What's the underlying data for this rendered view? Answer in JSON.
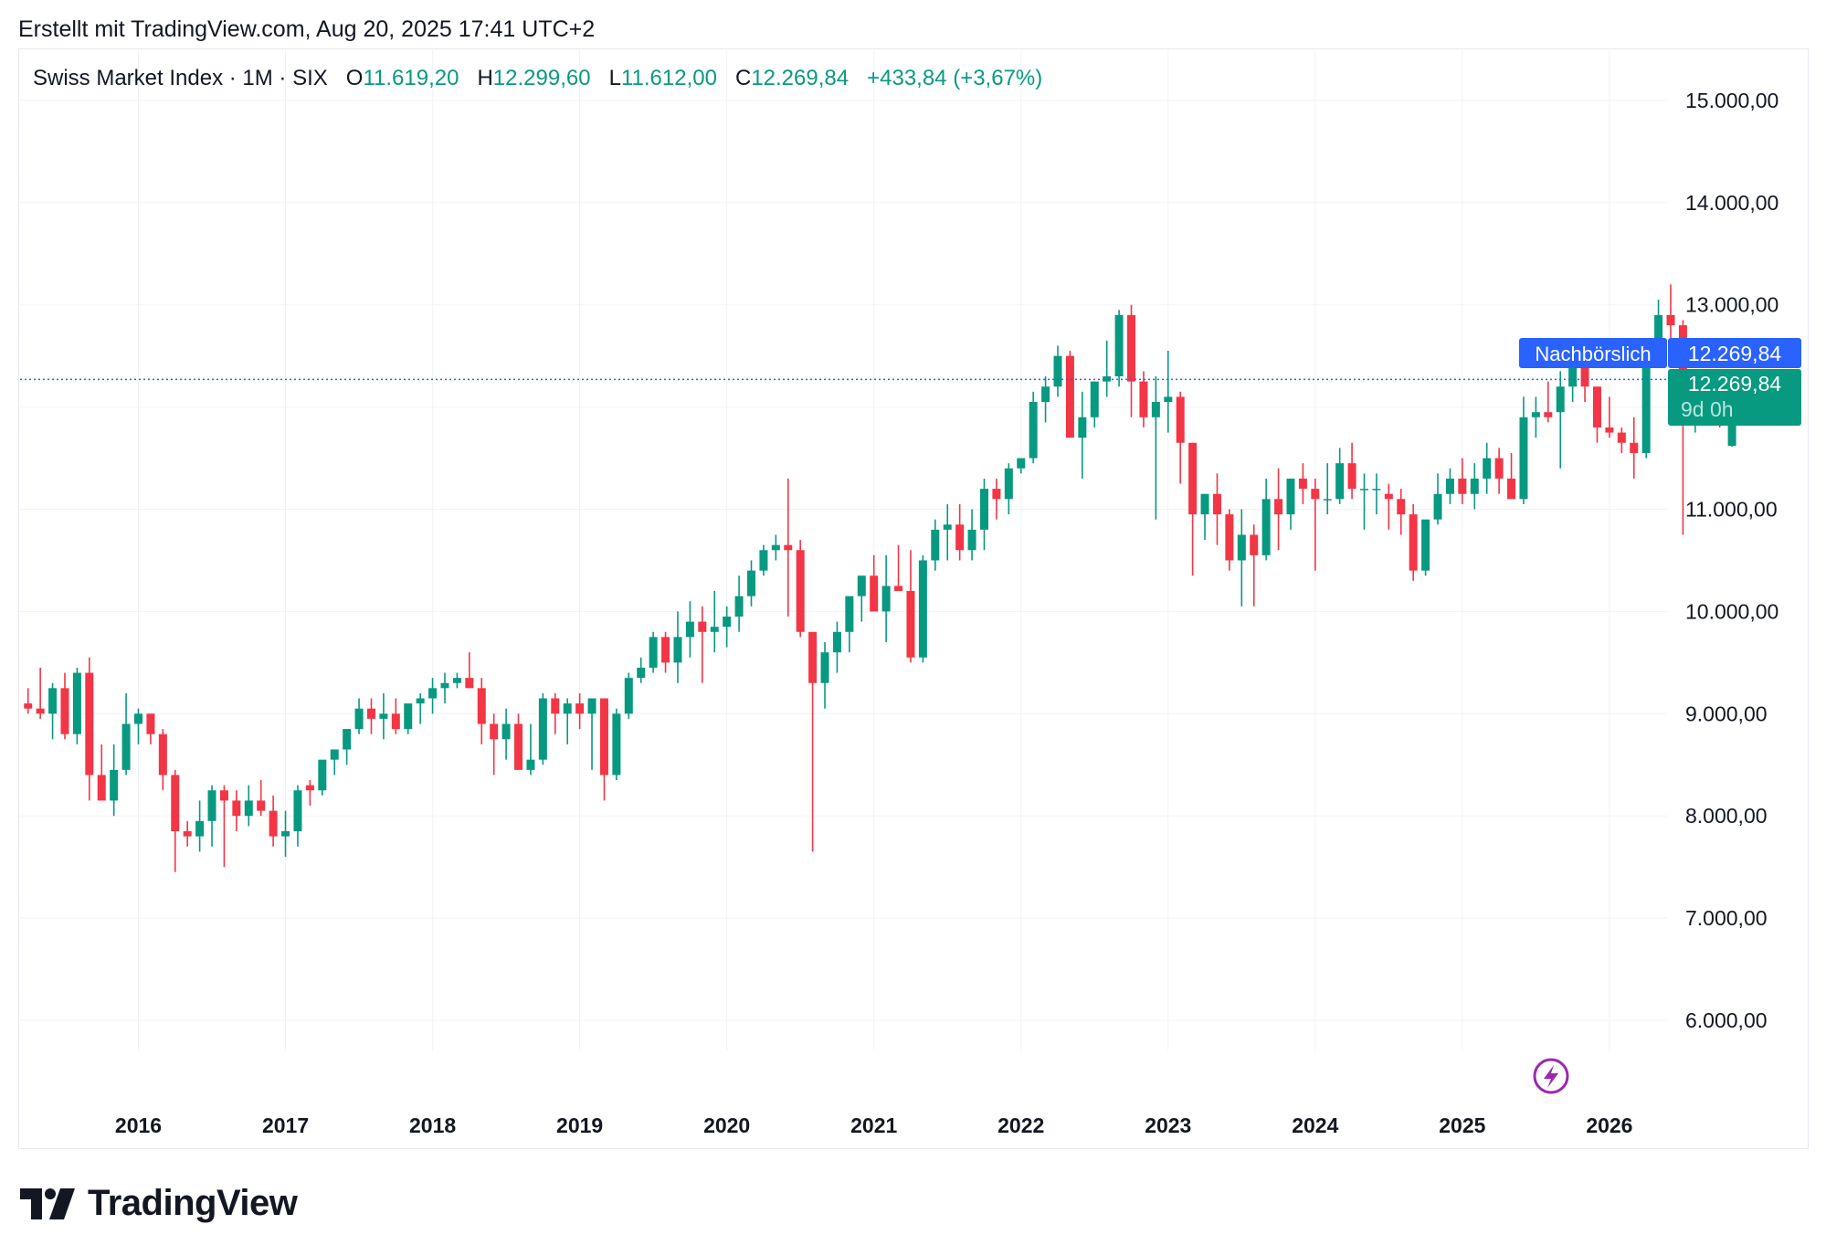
{
  "header": {
    "created_text": "Erstellt mit TradingView.com, Aug 20, 2025 17:41 UTC+2"
  },
  "legend": {
    "symbol": "Swiss Market Index · 1M · SIX",
    "o_label": "O",
    "o_value": "11.619,20",
    "h_label": "H",
    "h_value": "12.299,60",
    "l_label": "L",
    "l_value": "11.612,00",
    "c_label": "C",
    "c_value": "12.269,84",
    "change": "+433,84 (+3,67%)"
  },
  "price_badges": {
    "after_hours_label": "Nachbörslich",
    "after_hours_price": "12.269,84",
    "last_price": "12.269,84",
    "countdown": "9d 0h"
  },
  "footer": {
    "brand": "TradingView"
  },
  "colors": {
    "up": "#089981",
    "down": "#f23645",
    "after_hours": "#2962ff",
    "grid": "#f0f3fa",
    "marker": "#9c27b0"
  },
  "chart_data": {
    "type": "candlestick",
    "title": "Swiss Market Index · 1M · SIX",
    "interval": "1M",
    "ylim": [
      5400,
      15300
    ],
    "y_ticks": [
      {
        "value": 15000,
        "label": "15.000,00"
      },
      {
        "value": 14000,
        "label": "14.000,00"
      },
      {
        "value": 13000,
        "label": "13.000,00"
      },
      {
        "value": 11000,
        "label": "11.000,00"
      },
      {
        "value": 10000,
        "label": "10.000,00"
      },
      {
        "value": 9000,
        "label": "9.000,00"
      },
      {
        "value": 8000,
        "label": "8.000,00"
      },
      {
        "value": 7000,
        "label": "7.000,00"
      },
      {
        "value": 6000,
        "label": "6.000,00"
      }
    ],
    "x_ticks": [
      "2016",
      "2017",
      "2018",
      "2019",
      "2020",
      "2021",
      "2022",
      "2023",
      "2024",
      "2025",
      "2026"
    ],
    "first_month": "2015-04",
    "grid": true,
    "last_price": 12269.84,
    "candles": [
      [
        9100,
        9250,
        9000,
        9050
      ],
      [
        9050,
        9450,
        8950,
        9000
      ],
      [
        9000,
        9300,
        8750,
        9250
      ],
      [
        9250,
        9400,
        8750,
        8800
      ],
      [
        8800,
        9450,
        8700,
        9400
      ],
      [
        9400,
        9550,
        8150,
        8400
      ],
      [
        8400,
        8700,
        8200,
        8150
      ],
      [
        8150,
        8700,
        8000,
        8450
      ],
      [
        8450,
        9200,
        8400,
        8900
      ],
      [
        8900,
        9050,
        8700,
        9000
      ],
      [
        9000,
        9000,
        8700,
        8800
      ],
      [
        8800,
        8850,
        8250,
        8400
      ],
      [
        8400,
        8450,
        7450,
        7850
      ],
      [
        7850,
        7950,
        7700,
        7800
      ],
      [
        7800,
        8150,
        7650,
        7950
      ],
      [
        7950,
        8300,
        7700,
        8250
      ],
      [
        8250,
        8300,
        7500,
        8150
      ],
      [
        8150,
        8250,
        7850,
        8000
      ],
      [
        8000,
        8300,
        7900,
        8150
      ],
      [
        8150,
        8350,
        8000,
        8050
      ],
      [
        8050,
        8200,
        7700,
        7800
      ],
      [
        7800,
        8050,
        7600,
        7850
      ],
      [
        7850,
        8300,
        7700,
        8250
      ],
      [
        8300,
        8350,
        8100,
        8250
      ],
      [
        8250,
        8500,
        8200,
        8550
      ],
      [
        8550,
        8600,
        8400,
        8650
      ],
      [
        8650,
        8800,
        8500,
        8850
      ],
      [
        8850,
        9150,
        8800,
        9050
      ],
      [
        9050,
        9150,
        8800,
        8950
      ],
      [
        8950,
        9200,
        8750,
        9000
      ],
      [
        9000,
        9150,
        8800,
        8850
      ],
      [
        8850,
        9100,
        8800,
        9100
      ],
      [
        9100,
        9200,
        8900,
        9150
      ],
      [
        9150,
        9350,
        9000,
        9250
      ],
      [
        9250,
        9400,
        9100,
        9300
      ],
      [
        9300,
        9400,
        9250,
        9350
      ],
      [
        9350,
        9600,
        9250,
        9250
      ],
      [
        9250,
        9350,
        8700,
        8900
      ],
      [
        8900,
        9000,
        8400,
        8750
      ],
      [
        8750,
        9050,
        8550,
        8900
      ],
      [
        8900,
        9000,
        8450,
        8450
      ],
      [
        8450,
        8900,
        8400,
        8550
      ],
      [
        8550,
        9200,
        8500,
        9150
      ],
      [
        9150,
        9200,
        8800,
        9000
      ],
      [
        9000,
        9150,
        8700,
        9100
      ],
      [
        9100,
        9200,
        8850,
        9000
      ],
      [
        9000,
        9150,
        8450,
        9150
      ],
      [
        9150,
        9150,
        8150,
        8400
      ],
      [
        8400,
        9050,
        8350,
        9000
      ],
      [
        9000,
        9400,
        8950,
        9350
      ],
      [
        9350,
        9550,
        9300,
        9450
      ],
      [
        9450,
        9800,
        9400,
        9750
      ],
      [
        9750,
        9800,
        9400,
        9500
      ],
      [
        9500,
        10000,
        9300,
        9750
      ],
      [
        9750,
        10100,
        9550,
        9900
      ],
      [
        9900,
        10050,
        9300,
        9800
      ],
      [
        9800,
        10200,
        9600,
        9850
      ],
      [
        9850,
        10050,
        9650,
        9950
      ],
      [
        9950,
        10350,
        9800,
        10150
      ],
      [
        10150,
        10500,
        10050,
        10400
      ],
      [
        10400,
        10650,
        10350,
        10600
      ],
      [
        10600,
        10750,
        10500,
        10650
      ],
      [
        10650,
        11300,
        9950,
        10600
      ],
      [
        10600,
        10700,
        9750,
        9800
      ],
      [
        9800,
        9800,
        7650,
        9300
      ],
      [
        9300,
        9700,
        9050,
        9600
      ],
      [
        9600,
        9900,
        9400,
        9800
      ],
      [
        9800,
        10150,
        9600,
        10150
      ],
      [
        10150,
        10350,
        9900,
        10350
      ],
      [
        10350,
        10550,
        10000,
        10000
      ],
      [
        10000,
        10550,
        9700,
        10250
      ],
      [
        10250,
        10650,
        10200,
        10200
      ],
      [
        10200,
        10600,
        9500,
        9550
      ],
      [
        9550,
        10550,
        9500,
        10500
      ],
      [
        10500,
        10900,
        10400,
        10800
      ],
      [
        10800,
        11050,
        10500,
        10850
      ],
      [
        10850,
        11050,
        10500,
        10600
      ],
      [
        10600,
        11000,
        10500,
        10800
      ],
      [
        10800,
        11300,
        10600,
        11200
      ],
      [
        11200,
        11300,
        10900,
        11100
      ],
      [
        11100,
        11450,
        10950,
        11400
      ],
      [
        11400,
        11500,
        11350,
        11500
      ],
      [
        11500,
        12150,
        11450,
        12050
      ],
      [
        12050,
        12300,
        11850,
        12200
      ],
      [
        12200,
        12600,
        12100,
        12500
      ],
      [
        12500,
        12550,
        11700,
        11700
      ],
      [
        11700,
        12150,
        11300,
        11900
      ],
      [
        11900,
        12250,
        11800,
        12250
      ],
      [
        12250,
        12650,
        12100,
        12300
      ],
      [
        12300,
        12950,
        12200,
        12900
      ],
      [
        12900,
        13000,
        11900,
        12250
      ],
      [
        12250,
        12350,
        11800,
        11900
      ],
      [
        11900,
        12300,
        10900,
        12050
      ],
      [
        12050,
        12550,
        11750,
        12100
      ],
      [
        12100,
        12150,
        11250,
        11650
      ],
      [
        11650,
        11650,
        10350,
        10950
      ],
      [
        10950,
        11150,
        10700,
        11150
      ],
      [
        11150,
        11350,
        10650,
        10950
      ],
      [
        10950,
        11000,
        10400,
        10500
      ],
      [
        10500,
        11000,
        10050,
        10750
      ],
      [
        10750,
        10850,
        10050,
        10550
      ],
      [
        10550,
        11300,
        10500,
        11100
      ],
      [
        11100,
        11400,
        10600,
        10950
      ],
      [
        10950,
        11300,
        10800,
        11300
      ],
      [
        11300,
        11450,
        11050,
        11200
      ],
      [
        11200,
        11300,
        10400,
        11100
      ],
      [
        11100,
        11450,
        10950,
        11100
      ],
      [
        11100,
        11600,
        11050,
        11450
      ],
      [
        11450,
        11650,
        11100,
        11200
      ],
      [
        11200,
        11350,
        10800,
        11200
      ],
      [
        11200,
        11350,
        10950,
        11200
      ],
      [
        11150,
        11250,
        10800,
        11100
      ],
      [
        11100,
        11200,
        10750,
        10950
      ],
      [
        10950,
        11050,
        10300,
        10400
      ],
      [
        10400,
        10900,
        10350,
        10900
      ],
      [
        10900,
        11350,
        10850,
        11150
      ],
      [
        11150,
        11400,
        11050,
        11300
      ],
      [
        11300,
        11500,
        11050,
        11150
      ],
      [
        11150,
        11450,
        11000,
        11300
      ],
      [
        11300,
        11650,
        11150,
        11500
      ],
      [
        11500,
        11600,
        11150,
        11300
      ],
      [
        11300,
        11550,
        11150,
        11100
      ],
      [
        11100,
        12100,
        11050,
        11900
      ],
      [
        11900,
        12100,
        11700,
        11950
      ],
      [
        11950,
        12250,
        11850,
        11900
      ],
      [
        11950,
        12350,
        11400,
        12200
      ],
      [
        12200,
        12450,
        12050,
        12400
      ],
      [
        12400,
        12450,
        12050,
        12200
      ],
      [
        12200,
        12200,
        11650,
        11800
      ],
      [
        11800,
        12100,
        11700,
        11750
      ],
      [
        11750,
        11800,
        11550,
        11650
      ],
      [
        11650,
        11900,
        11300,
        11550
      ],
      [
        11550,
        12600,
        11500,
        12600
      ],
      [
        12600,
        13050,
        12550,
        12900
      ],
      [
        12900,
        13200,
        12550,
        12800
      ],
      [
        12800,
        12850,
        10750,
        12100
      ],
      [
        12100,
        12350,
        11750,
        12150
      ],
      [
        12150,
        12200,
        11900,
        11900
      ],
      [
        11900,
        12100,
        11800,
        11850
      ],
      [
        11619.2,
        12299.6,
        11612,
        12269.84
      ]
    ]
  }
}
